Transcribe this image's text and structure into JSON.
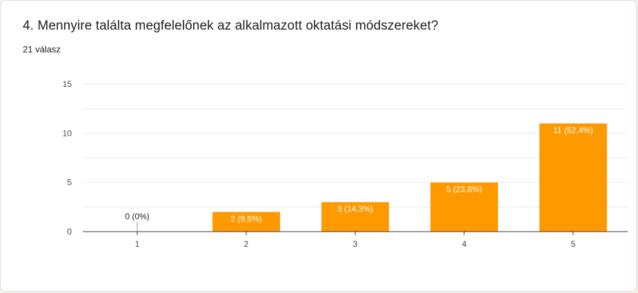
{
  "question": {
    "title": "4. Mennyire találta megfelelőnek az alkalmazott oktatási módszereket?",
    "responses": "21 válasz"
  },
  "colors": {
    "bar": "#ff9900",
    "grid": "#e8e8e8",
    "axis": "#333333",
    "label_inside": "#ffffff",
    "label_outside": "#222222"
  },
  "chart_data": {
    "type": "bar",
    "categories": [
      "1",
      "2",
      "3",
      "4",
      "5"
    ],
    "values": [
      0,
      2,
      3,
      5,
      11
    ],
    "data_labels": [
      "0 (0%)",
      "2 (9,5%)",
      "3 (14,3%)",
      "5 (23,8%)",
      "11 (52,4%)"
    ],
    "y_ticks": [
      "0",
      "5",
      "10",
      "15"
    ],
    "ylim": [
      0,
      15
    ],
    "grid": true,
    "title": "",
    "xlabel": "",
    "ylabel": ""
  }
}
